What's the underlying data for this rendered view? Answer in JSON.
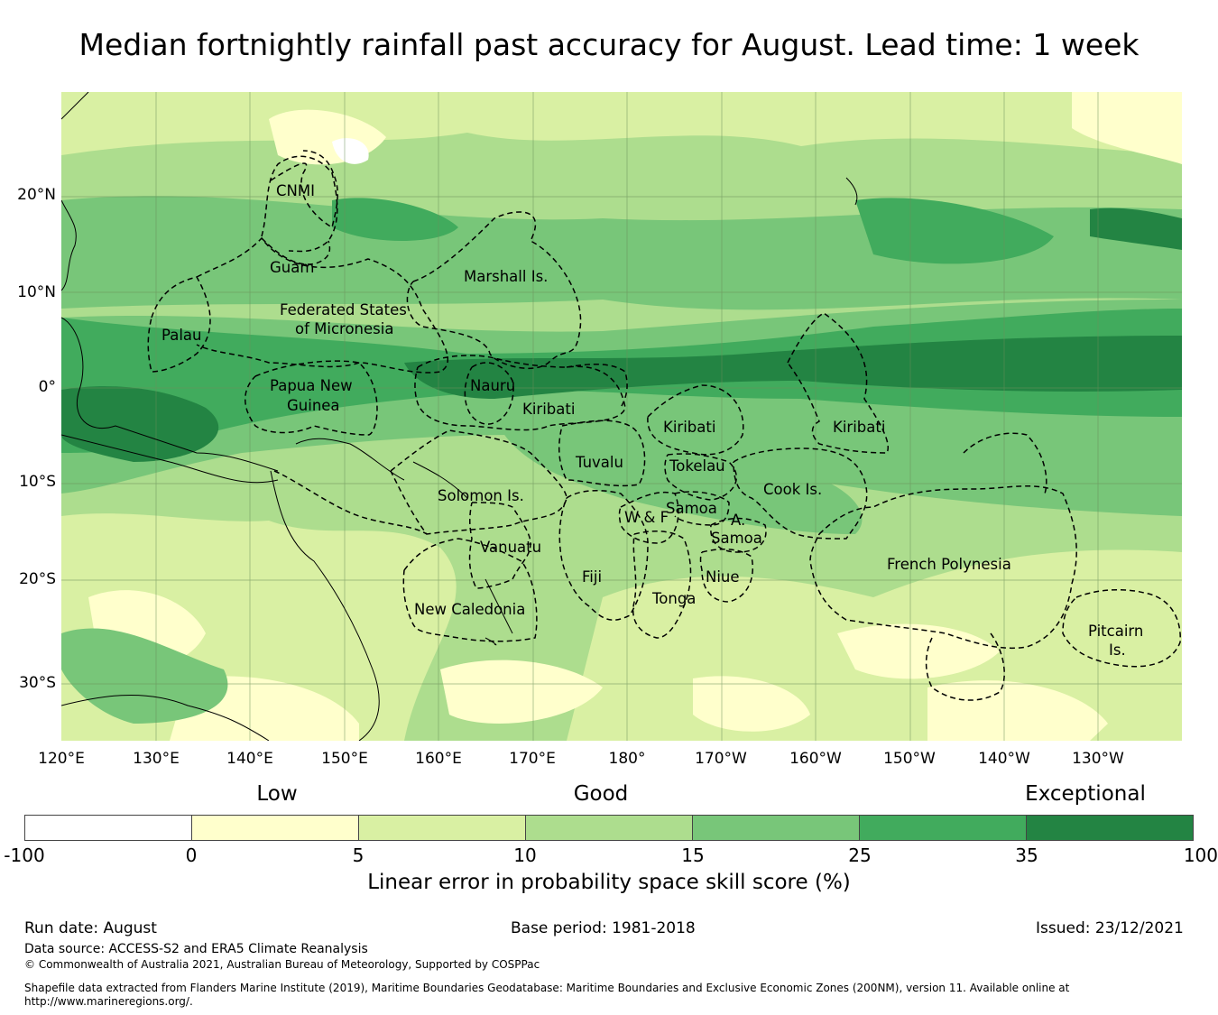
{
  "title": "Median fortnightly rainfall past accuracy for August. Lead time: 1 week",
  "map": {
    "lat_labels": [
      "20°N",
      "10°N",
      "0°",
      "10°S",
      "20°S",
      "30°S"
    ],
    "lon_labels": [
      "120°E",
      "130°E",
      "140°E",
      "150°E",
      "160°E",
      "170°E",
      "180°",
      "170°W",
      "160°W",
      "150°W",
      "140°W",
      "130°W"
    ],
    "regions": [
      {
        "name": "CNMI"
      },
      {
        "name": "Guam"
      },
      {
        "name": "Marshall Is."
      },
      {
        "name": "Federated States"
      },
      {
        "name": "of Micronesia"
      },
      {
        "name": "Palau"
      },
      {
        "name": "Papua New"
      },
      {
        "name": "Guinea"
      },
      {
        "name": "Nauru"
      },
      {
        "name": "Kiribati"
      },
      {
        "name": "Kiribati"
      },
      {
        "name": "Kiribati"
      },
      {
        "name": "Tuvalu"
      },
      {
        "name": "Tokelau"
      },
      {
        "name": "Solomon Is."
      },
      {
        "name": "Samoa"
      },
      {
        "name": "W & F"
      },
      {
        "name": "A."
      },
      {
        "name": "Samoa"
      },
      {
        "name": "Cook Is."
      },
      {
        "name": "Vanuatu"
      },
      {
        "name": "Fiji"
      },
      {
        "name": "Niue"
      },
      {
        "name": "Tonga"
      },
      {
        "name": "French Polynesia"
      },
      {
        "name": "New Caledonia"
      },
      {
        "name": "Pitcairn"
      },
      {
        "name": "Is."
      }
    ]
  },
  "legend": {
    "categories": [
      "Low",
      "Good",
      "Exceptional"
    ],
    "colors": [
      "#ffffff",
      "#ffffcc",
      "#d9f0a3",
      "#addd8e",
      "#78c679",
      "#41ab5d",
      "#238443"
    ],
    "ticks": [
      "-100",
      "0",
      "5",
      "10",
      "15",
      "25",
      "35",
      "100"
    ],
    "label": "Linear error in probability space skill score (%)"
  },
  "footer": {
    "run_date": "Run date: August",
    "base_period": "Base period: 1981-2018",
    "issued": "Issued: 23/12/2021",
    "data_source": "Data source: ACCESS-S2 and ERA5 Climate Reanalysis",
    "copyright": "© Commonwealth of Australia 2021, Australian Bureau of Meteorology, Supported by COSPPac",
    "shapefile_line1": "Shapefile data extracted from Flanders Marine Institute (2019), Maritime Boundaries Geodatabase: Maritime Boundaries and Exclusive Economic Zones (200NM), version 11. Available online at",
    "shapefile_line2": "http://www.marineregions.org/."
  }
}
